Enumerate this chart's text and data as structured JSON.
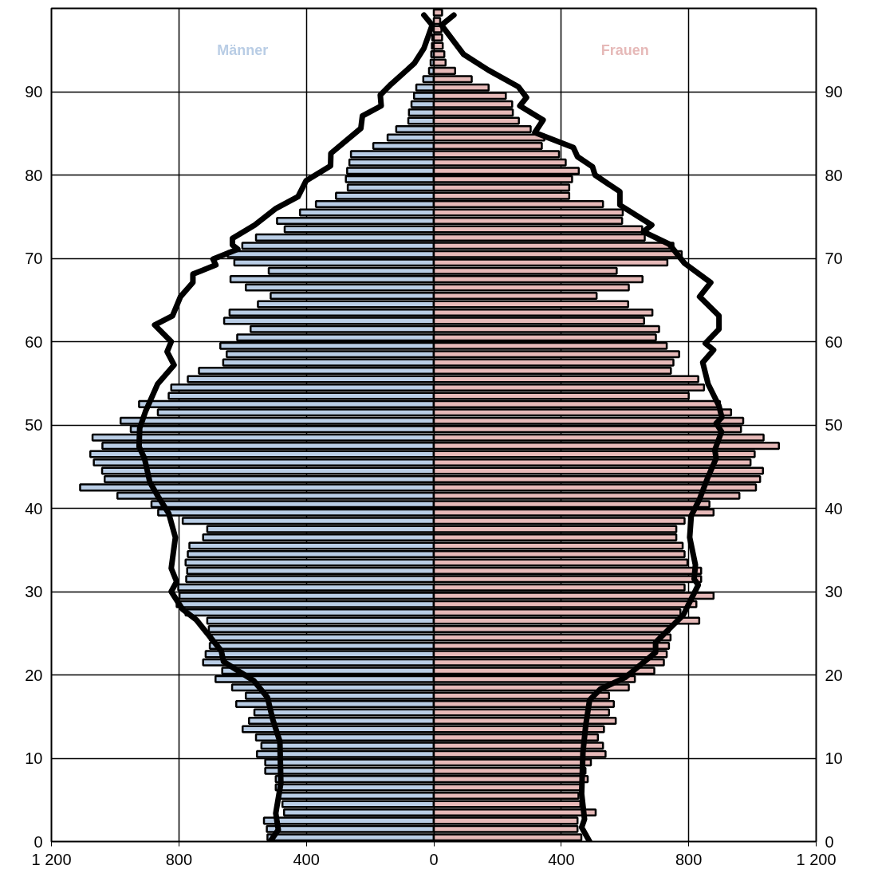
{
  "chart_data": {
    "type": "bar",
    "orientation": "horizontal",
    "stacked": true,
    "grid": true,
    "x": [
      0.5,
      1.5,
      2.5,
      3.5,
      4.5,
      5.5,
      6.5,
      7.5,
      8.5,
      9.5,
      10.5,
      11.5,
      12.5,
      13.5,
      14.5,
      15.5,
      16.5,
      17.5,
      18.5,
      19.5,
      20.5,
      21.5,
      22.5,
      23.5,
      24.5,
      25.5,
      26.5,
      27.5,
      28.5,
      29.5,
      30.5,
      31.5,
      32.5,
      33.5,
      34.5,
      35.5,
      36.5,
      37.5,
      38.5,
      39.5,
      40.5,
      41.5,
      42.5,
      43.5,
      44.5,
      45.5,
      46.5,
      47.5,
      48.5,
      49.5,
      50.5,
      51.5,
      52.5,
      53.5,
      54.5,
      55.5,
      56.5,
      57.5,
      58.5,
      59.5,
      60.5,
      61.5,
      62.5,
      63.5,
      64.5,
      65.5,
      66.5,
      67.5,
      68.5,
      69.5,
      70.5,
      71.5,
      72.5,
      73.5,
      74.5,
      75.5,
      76.5,
      77.5,
      78.5,
      79.5,
      80.5,
      81.5,
      82.5,
      83.5,
      84.5,
      85.5,
      86.5,
      87.5,
      88.5,
      89.5,
      90.5,
      91.5,
      92.5,
      93.5,
      94.5,
      95.5,
      96.5,
      97.5,
      98.5,
      99.5
    ],
    "xlim": [
      -1200,
      1200
    ],
    "xticks": [
      {
        "value": -1200,
        "label": "1 200"
      },
      {
        "value": -800,
        "label": "800"
      },
      {
        "value": -400,
        "label": "400"
      },
      0,
      400,
      800,
      {
        "value": 1200,
        "label": "1 200"
      }
    ],
    "ylim": [
      0,
      100
    ],
    "yticks": [
      0,
      10,
      20,
      30,
      40,
      50,
      60,
      70,
      80,
      90
    ],
    "y2lim": [
      0,
      100
    ],
    "y2ticks": [
      0,
      10,
      20,
      30,
      40,
      50,
      60,
      70,
      80,
      90
    ],
    "series": [
      {
        "name": "Männer",
        "color": "#b9cde5",
        "values": [
          -522,
          -524,
          -533,
          -470,
          -475,
          -483,
          -496,
          -496,
          -529,
          -529,
          -555,
          -541,
          -558,
          -600,
          -580,
          -563,
          -620,
          -590,
          -633,
          -685,
          -664,
          -724,
          -716,
          -703,
          -703,
          -706,
          -711,
          -779,
          -807,
          -798,
          -802,
          -777,
          -774,
          -779,
          -772,
          -767,
          -724,
          -711,
          -788,
          -865,
          -886,
          -993,
          -1110,
          -1033,
          -1041,
          -1067,
          -1078,
          -1040,
          -1071,
          -951,
          -983,
          -866,
          -925,
          -832,
          -824,
          -772,
          -737,
          -661,
          -650,
          -670,
          -617,
          -575,
          -658,
          -641,
          -552,
          -512,
          -590,
          -638,
          -518,
          -626,
          -647,
          -601,
          -558,
          -468,
          -492,
          -420,
          -370,
          -307,
          -270,
          -276,
          -272,
          -265,
          -260,
          -190,
          -145,
          -118,
          -80,
          -78,
          -70,
          -62,
          -55,
          -33,
          -15,
          -10,
          -8,
          -6,
          -5,
          null,
          null,
          null
        ]
      },
      {
        "name": "Frauen",
        "color": "#e6b9b8",
        "values": [
          463,
          451,
          451,
          508,
          460,
          454,
          463,
          483,
          476,
          493,
          539,
          531,
          515,
          534,
          571,
          550,
          565,
          550,
          612,
          631,
          692,
          722,
          731,
          738,
          743,
          740,
          833,
          774,
          824,
          878,
          787,
          839,
          839,
          796,
          787,
          781,
          761,
          761,
          787,
          878,
          865,
          959,
          1011,
          1024,
          1033,
          994,
          1007,
          1083,
          1035,
          964,
          971,
          933,
          898,
          800,
          848,
          830,
          744,
          752,
          770,
          731,
          697,
          707,
          660,
          686,
          610,
          511,
          612,
          655,
          574,
          733,
          778,
          752,
          662,
          654,
          591,
          593,
          531,
          425,
          425,
          434,
          455,
          414,
          393,
          339,
          347,
          304,
          267,
          248,
          246,
          226,
          172,
          119,
          67,
          37,
          33,
          28,
          26,
          24,
          20,
          26
        ]
      },
      {
        "type": "line",
        "color": "#000000",
        "x": [
          0,
          1.4,
          3.4,
          7.0,
          12.0,
          14.6,
          17.3,
          19.3,
          21.6,
          22.9,
          26.6,
          27.9,
          30.0,
          31.2,
          32.8,
          36.5,
          39.4,
          41.4,
          43.1,
          46.0,
          47.4,
          49.6,
          51.6,
          54.9,
          57.2,
          58.8,
          60.0,
          62.0,
          63.1,
          65.4,
          67.1,
          68.1,
          69.2,
          69.9,
          71.1,
          71.6,
          72.4,
          74.0,
          76.0,
          77.4,
          79.3,
          81.1,
          82.6,
          85.6,
          87.1,
          88.3,
          89.6,
          90.9,
          93.4,
          95.2,
          98.0,
          99.2
        ],
        "values": [
          -514,
          -488,
          -496,
          -480,
          -483,
          -505,
          -522,
          -565,
          -660,
          -667,
          -745,
          -789,
          -824,
          -807,
          -824,
          -811,
          -832,
          -865,
          -891,
          -908,
          -925,
          -923,
          -905,
          -867,
          -815,
          -837,
          -824,
          -876,
          -820,
          -795,
          -756,
          -756,
          -684,
          -693,
          -615,
          -632,
          -632,
          -562,
          -495,
          -426,
          -401,
          -324,
          -323,
          -229,
          -224,
          -165,
          -168,
          -134,
          -61,
          -31,
          -5,
          -31
        ]
      },
      {
        "type": "line",
        "color": "#000000",
        "x": [
          0,
          1.7,
          2.7,
          5.7,
          10.7,
          14.0,
          17.0,
          18.3,
          19.7,
          22.7,
          23.9,
          27.2,
          30.8,
          31.5,
          33.2,
          36.5,
          39.1,
          41.1,
          43.7,
          46.0,
          47.0,
          49.2,
          50.2,
          50.9,
          52.3,
          54.9,
          57.5,
          59.0,
          59.8,
          61.5,
          63.1,
          65.4,
          67.1,
          69.4,
          71.7,
          73.2,
          74.0,
          76.4,
          78.0,
          80.0,
          81.0,
          82.2,
          83.3,
          85.1,
          86.6,
          88.3,
          89.3,
          90.6,
          92.6,
          94.5,
          98.0,
          99.2
        ],
        "values": [
          489,
          464,
          473,
          464,
          468,
          477,
          489,
          523,
          601,
          696,
          696,
          783,
          830,
          817,
          821,
          803,
          808,
          834,
          860,
          886,
          882,
          903,
          886,
          904,
          895,
          861,
          844,
          878,
          852,
          895,
          895,
          834,
          869,
          787,
          739,
          658,
          684,
          584,
          584,
          506,
          498,
          451,
          438,
          317,
          343,
          270,
          291,
          265,
          171,
          93,
          24,
          63
        ]
      }
    ]
  }
}
